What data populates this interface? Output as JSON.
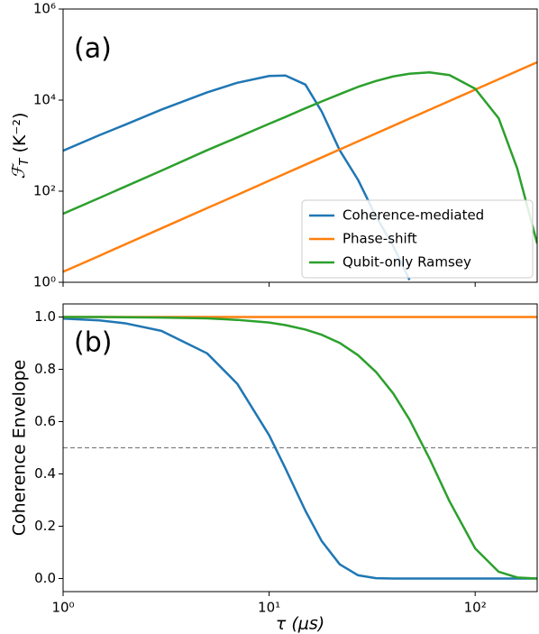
{
  "chart_data": [
    {
      "type": "line",
      "panel_label": "(a)",
      "ylabel": {
        "symbol": "ℱ",
        "subscript": "T",
        "unit": "(K⁻²)"
      },
      "xscale": "log",
      "yscale": "log",
      "xlim": [
        1,
        200
      ],
      "ylim": [
        1,
        1000000
      ],
      "xticks": [
        1,
        10,
        100
      ],
      "yticks": [
        {
          "value": 1,
          "label": "10⁰"
        },
        {
          "value": 100,
          "label": "10²"
        },
        {
          "value": 10000,
          "label": "10⁴"
        },
        {
          "value": 1000000,
          "label": "10⁶"
        }
      ],
      "legend": "lower right",
      "x": [
        1,
        1.5,
        2,
        3,
        5,
        7,
        10,
        12,
        15,
        18,
        22,
        27,
        33,
        40,
        48,
        60,
        75,
        100,
        130,
        160,
        200
      ],
      "series": [
        {
          "name": "Coherence-mediated",
          "color": "#1f77b4",
          "values": [
            776,
            1700,
            2880,
            6170,
            14800,
            24000,
            33900,
            34700,
            21900,
            5600,
            794,
            178,
            28,
            6.3,
            1.12,
            null,
            null,
            null,
            null,
            null,
            null
          ]
        },
        {
          "name": "Phase-shift",
          "color": "#ff7f0e",
          "values": [
            1.7,
            3.8,
            6.8,
            15.3,
            42.5,
            83,
            170,
            245,
            383,
            551,
            823,
            1240,
            1850,
            2720,
            3920,
            6120,
            9560,
            17000,
            28700,
            43500,
            68000
          ]
        },
        {
          "name": "Qubit-only Ramsey",
          "color": "#2ca02c",
          "values": [
            32,
            71,
            126,
            282,
            794,
            1510,
            3020,
            4270,
            6610,
            9330,
            13500,
            19500,
            26300,
            33100,
            38000,
            40700,
            35500,
            17800,
            4000,
            316,
            7.1
          ]
        }
      ]
    },
    {
      "type": "line",
      "panel_label": "(b)",
      "ylabel": "Coherence Envelope",
      "xlabel": "τ (μs)",
      "xscale": "log",
      "xlim": [
        1,
        200
      ],
      "ylim": [
        -0.05,
        1.05
      ],
      "xticks": [
        {
          "value": 1,
          "label": "10⁰"
        },
        {
          "value": 10,
          "label": "10¹"
        },
        {
          "value": 100,
          "label": "10²"
        }
      ],
      "yticks": [
        {
          "value": 0,
          "label": "0.0"
        },
        0.2,
        0.4,
        0.6,
        0.8,
        {
          "value": 1,
          "label": "1.0"
        }
      ],
      "hline": 0.5,
      "x": [
        1,
        1.5,
        2,
        3,
        5,
        7,
        10,
        12,
        15,
        18,
        22,
        27,
        33,
        40,
        48,
        60,
        75,
        100,
        130,
        160,
        200
      ],
      "series": [
        {
          "name": "Coherence-mediated",
          "color": "#1f77b4",
          "values": [
            0.994,
            0.987,
            0.976,
            0.947,
            0.861,
            0.745,
            0.548,
            0.421,
            0.259,
            0.143,
            0.0545,
            0.0125,
            0.0014,
            0.0001,
            0,
            0,
            0,
            0,
            0,
            0,
            0
          ]
        },
        {
          "name": "Phase-shift",
          "color": "#ff7f0e",
          "values": [
            1,
            1,
            1,
            1,
            1,
            1,
            1,
            1,
            1,
            1,
            1,
            1,
            1,
            1,
            1,
            1,
            1,
            1,
            1,
            1,
            1
          ]
        },
        {
          "name": "Qubit-only Ramsey",
          "color": "#2ca02c",
          "values": [
            1,
            1,
            0.999,
            0.998,
            0.995,
            0.989,
            0.979,
            0.969,
            0.952,
            0.932,
            0.901,
            0.854,
            0.79,
            0.708,
            0.608,
            0.459,
            0.296,
            0.115,
            0.0259,
            0.0039,
            0.0002
          ]
        }
      ]
    }
  ]
}
